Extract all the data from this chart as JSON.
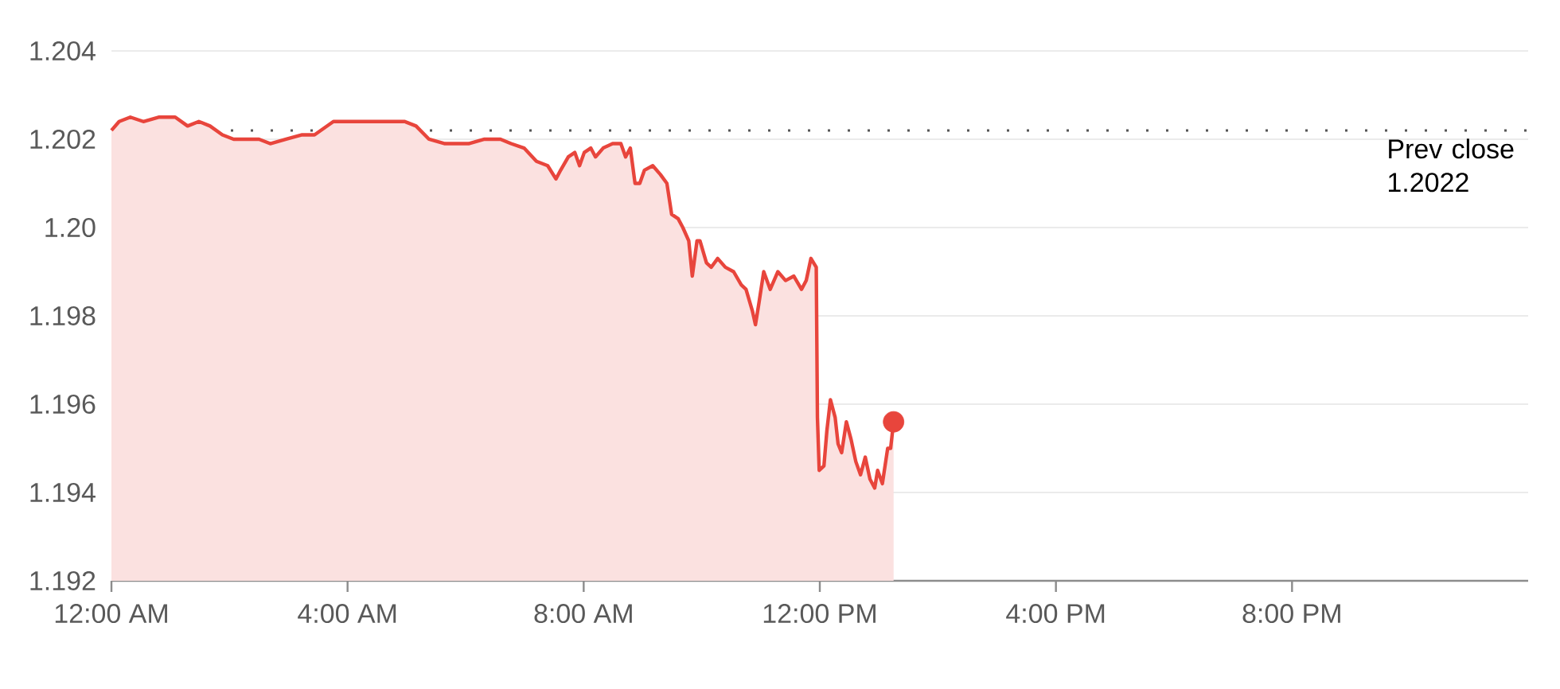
{
  "chart_data": {
    "type": "area",
    "x": [
      0,
      0.13,
      0.32,
      0.54,
      0.81,
      0.94,
      1.08,
      1.29,
      1.48,
      1.67,
      1.88,
      2.07,
      2.28,
      2.5,
      2.69,
      2.96,
      3.23,
      3.44,
      3.76,
      4.03,
      4.3,
      4.57,
      4.97,
      5.16,
      5.38,
      5.65,
      6.05,
      6.32,
      6.59,
      6.77,
      6.99,
      7.2,
      7.39,
      7.53,
      7.61,
      7.74,
      7.85,
      7.93,
      8.01,
      8.12,
      8.2,
      8.33,
      8.49,
      8.63,
      8.71,
      8.79,
      8.87,
      8.95,
      9.03,
      9.17,
      9.3,
      9.41,
      9.49,
      9.6,
      9.68,
      9.78,
      9.84,
      9.92,
      9.97,
      10.08,
      10.16,
      10.27,
      10.4,
      10.54,
      10.67,
      10.75,
      10.86,
      10.91,
      10.97,
      11.05,
      11.16,
      11.29,
      11.42,
      11.56,
      11.69,
      11.77,
      11.85,
      11.94,
      11.96,
      11.99,
      12.07,
      12.12,
      12.18,
      12.26,
      12.31,
      12.37,
      12.45,
      12.53,
      12.61,
      12.69,
      12.77,
      12.85,
      12.93,
      12.98,
      13.06,
      13.15,
      13.2,
      13.25
    ],
    "series": [
      {
        "color": "#e8453c",
        "values": [
          1.2022,
          1.2024,
          1.2025,
          1.2024,
          1.2025,
          1.2025,
          1.2025,
          1.2023,
          1.2024,
          1.2023,
          1.2021,
          1.202,
          1.202,
          1.202,
          1.2019,
          1.202,
          1.2021,
          1.2021,
          1.2024,
          1.2024,
          1.2024,
          1.2024,
          1.2024,
          1.2023,
          1.202,
          1.2019,
          1.2019,
          1.202,
          1.202,
          1.2019,
          1.2018,
          1.2015,
          1.2014,
          1.2011,
          1.2013,
          1.2016,
          1.2017,
          1.2014,
          1.2017,
          1.2018,
          1.2016,
          1.2018,
          1.2019,
          1.2019,
          1.2016,
          1.2018,
          1.201,
          1.201,
          1.2013,
          1.2014,
          1.2012,
          1.201,
          1.2003,
          1.2002,
          1.2,
          1.1997,
          1.1989,
          1.1997,
          1.1997,
          1.1992,
          1.1991,
          1.1993,
          1.1991,
          1.199,
          1.1987,
          1.1986,
          1.1981,
          1.1978,
          1.1983,
          1.199,
          1.1986,
          1.199,
          1.1988,
          1.1989,
          1.1986,
          1.1988,
          1.1993,
          1.1991,
          1.1957,
          1.1945,
          1.1946,
          1.1954,
          1.1961,
          1.1957,
          1.1951,
          1.1949,
          1.1956,
          1.1952,
          1.1947,
          1.1944,
          1.1948,
          1.1943,
          1.1941,
          1.1945,
          1.1942,
          1.195,
          1.195,
          1.1956
        ]
      },
      {
        "type": "scatter",
        "color": "#e8453c",
        "x": [
          13.25
        ],
        "values": [
          1.1956
        ]
      }
    ],
    "xlim": [
      0,
      24
    ],
    "xticks": [
      {
        "value": 0,
        "label": "12:00 AM"
      },
      {
        "value": 4,
        "label": "4:00 AM"
      },
      {
        "value": 8,
        "label": "8:00 AM"
      },
      {
        "value": 12,
        "label": "12:00 PM"
      },
      {
        "value": 16,
        "label": "4:00 PM"
      },
      {
        "value": 20,
        "label": "8:00 PM"
      }
    ],
    "ylim": [
      1.192,
      1.204
    ],
    "yticks": [
      1.192,
      1.194,
      1.196,
      1.198,
      {
        "value": 1.2,
        "label": "1.20"
      },
      1.202,
      1.204
    ],
    "grid": "y",
    "ref_lines": [
      {
        "axis": "y",
        "value": 1.2022,
        "label": "Prev close 1.2022",
        "line_style": "dotted"
      }
    ]
  }
}
